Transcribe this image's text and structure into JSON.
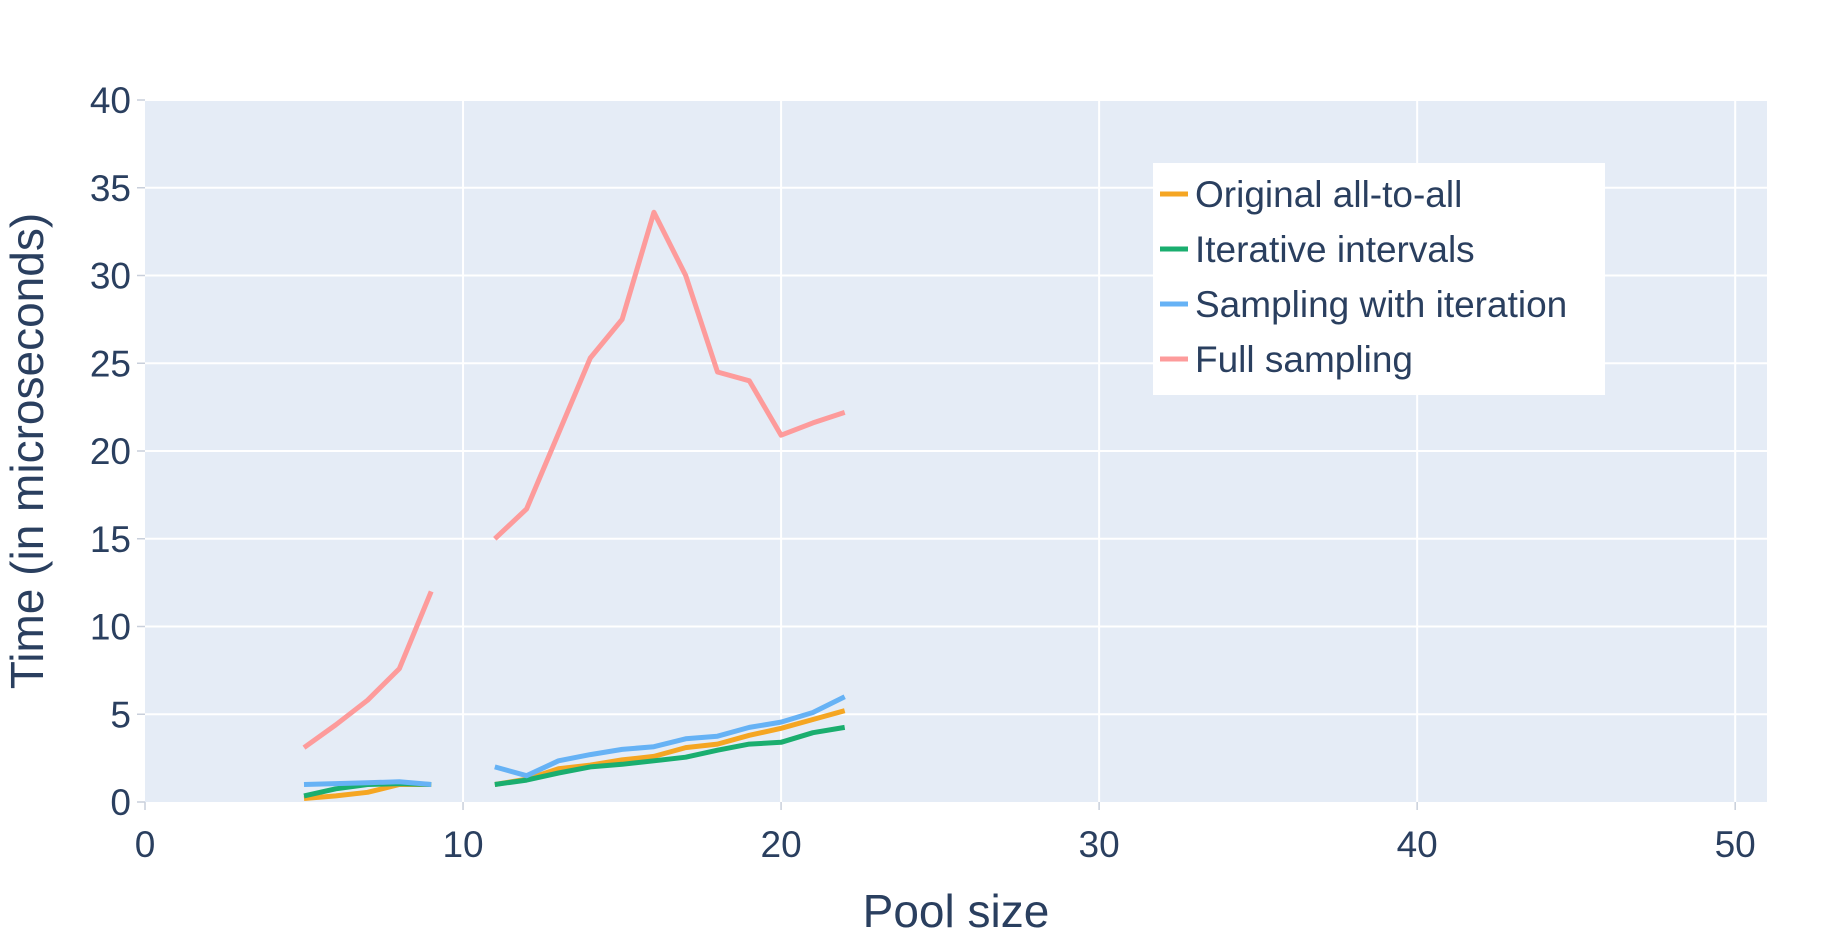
{
  "chart_data": {
    "type": "line",
    "title": "",
    "xlabel": "Pool size",
    "ylabel": "Time (in microseconds)",
    "xlim": [
      0,
      51
    ],
    "ylim": [
      0,
      40
    ],
    "x_ticks": [
      0,
      10,
      20,
      30,
      40,
      50
    ],
    "y_ticks": [
      0,
      5,
      10,
      15,
      20,
      25,
      30,
      35,
      40
    ],
    "grid": true,
    "legend_position": "top-right",
    "colors": {
      "plot_background": "#e5ecf6",
      "grid": "#ffffff",
      "text": "#2a3f5f"
    },
    "series": [
      {
        "name": "Original all-to-all",
        "color": "#f5a623",
        "x": [
          5,
          6,
          7,
          8,
          9,
          null,
          11,
          12,
          13,
          14,
          15,
          16,
          17,
          18,
          19,
          20,
          21,
          22
        ],
        "y": [
          0.2,
          0.35,
          0.55,
          1.0,
          1.0,
          null,
          1.0,
          1.3,
          1.9,
          2.1,
          2.4,
          2.6,
          3.1,
          3.3,
          3.8,
          4.2,
          4.7,
          5.2
        ]
      },
      {
        "name": "Iterative intervals",
        "color": "#1aae6f",
        "x": [
          5,
          6,
          7,
          8,
          9,
          null,
          11,
          12,
          13,
          14,
          15,
          16,
          17,
          18,
          19,
          20,
          21,
          22
        ],
        "y": [
          0.35,
          0.75,
          1.0,
          1.05,
          1.0,
          null,
          1.0,
          1.25,
          1.65,
          2.0,
          2.15,
          2.35,
          2.55,
          2.95,
          3.3,
          3.4,
          3.95,
          4.25
        ]
      },
      {
        "name": "Sampling with iteration",
        "color": "#66b2f5",
        "x": [
          5,
          6,
          7,
          8,
          9,
          null,
          11,
          12,
          13,
          14,
          15,
          16,
          17,
          18,
          19,
          20,
          21,
          22
        ],
        "y": [
          1.0,
          1.05,
          1.1,
          1.15,
          1.0,
          null,
          2.0,
          1.5,
          2.35,
          2.7,
          3.0,
          3.15,
          3.6,
          3.75,
          4.25,
          4.55,
          5.1,
          6.0
        ]
      },
      {
        "name": "Full sampling",
        "color": "#fd9b9b",
        "x": [
          5,
          6,
          7,
          8,
          9,
          null,
          11,
          12,
          13,
          14,
          15,
          16,
          17,
          18,
          19,
          20,
          21,
          22
        ],
        "y": [
          3.1,
          4.4,
          5.8,
          7.6,
          12.0,
          null,
          15.0,
          16.7,
          21.0,
          25.3,
          27.5,
          33.6,
          30.0,
          24.5,
          24.0,
          20.9,
          21.6,
          22.2
        ]
      }
    ]
  }
}
